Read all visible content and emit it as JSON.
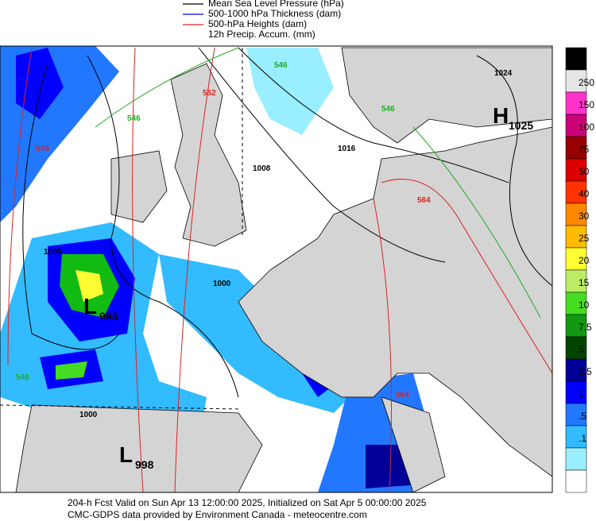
{
  "legend": [
    "Mean Sea Level Pressure (hPa)",
    "500-1000 hPa Thickness (dam)",
    "500-hPa Heights (dam)",
    "12h Precip. Accum. (mm)"
  ],
  "legend_colors": [
    "#000000",
    "#0000cc",
    "#dd2222",
    null
  ],
  "colorbar": {
    "labels": [
      "250",
      "150",
      "100",
      "75",
      "50",
      "40",
      "30",
      "25",
      "20",
      "15",
      "10",
      "7.5",
      "5",
      "2.5",
      "1",
      ".5",
      ".1"
    ],
    "colors": [
      "#000000",
      "#e6e6e6",
      "#ff33cc",
      "#cc0077",
      "#990000",
      "#dd0000",
      "#ff3300",
      "#ff8800",
      "#ffbb00",
      "#ffff33",
      "#bbee66",
      "#44dd22",
      "#119911",
      "#004400",
      "#000099",
      "#0000ff",
      "#2277ff",
      "#33bbff",
      "#99eeff",
      "#ffffff"
    ]
  },
  "map_labels": {
    "highs": [
      {
        "letter": "H",
        "value": "1025"
      }
    ],
    "lows": [
      {
        "letter": "L",
        "value": "993"
      },
      {
        "letter": "L",
        "value": "998"
      }
    ],
    "isobars": [
      "1000",
      "1008",
      "1016",
      "1024",
      "1000",
      "1000"
    ],
    "heights": [
      "552",
      "564",
      "564",
      "546"
    ],
    "thickness": [
      "546",
      "546",
      "546",
      "546"
    ]
  },
  "footer": [
    "204-h Fcst Valid on Sun Apr 13 12:00:00 2025, Initialized on Sat Apr  5 00:00:00 2025",
    "CMC-GDPS data provided by Environment Canada - meteocentre.com"
  ]
}
